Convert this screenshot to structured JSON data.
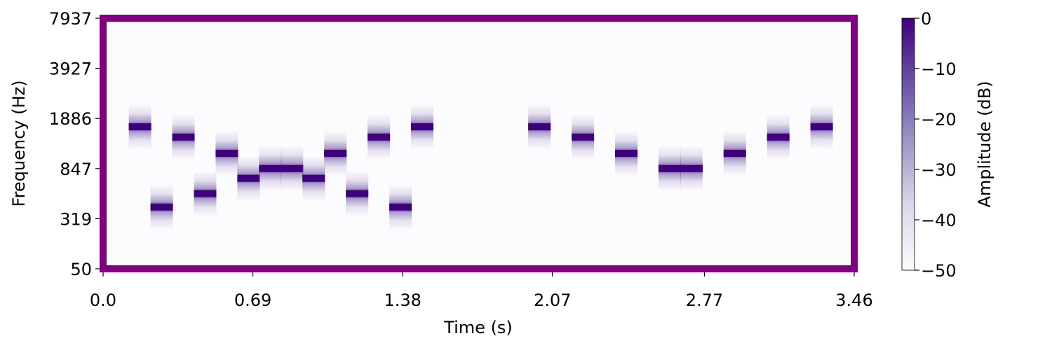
{
  "chart_data": {
    "type": "heatmap",
    "subtype": "spectrogram",
    "xlabel": "Time (s)",
    "ylabel": "Frequency (Hz)",
    "x_ticks": [
      "0.0",
      "0.69",
      "1.38",
      "2.07",
      "2.77",
      "3.46"
    ],
    "x_tick_values": [
      0.0,
      0.69,
      1.38,
      2.07,
      2.77,
      3.46
    ],
    "y_ticks": [
      "50",
      "319",
      "847",
      "1886",
      "3927",
      "7937"
    ],
    "y_tick_values": [
      50,
      319,
      847,
      1886,
      3927,
      7937
    ],
    "xlim": [
      0.0,
      3.46
    ],
    "ylim": [
      50,
      7937
    ],
    "y_scale": "log-like (mel)",
    "colorbar": {
      "label": "Amplitude (dB)",
      "ticks": [
        "0",
        "−10",
        "−20",
        "−30",
        "−40",
        "−50"
      ],
      "tick_values": [
        0,
        -10,
        -20,
        -30,
        -40,
        -50
      ],
      "range": [
        -50,
        0
      ],
      "colormap": "Purples"
    },
    "frame_color": "#800080",
    "background_color": "#fcfbfd",
    "note_color": "#4a1486",
    "notes": [
      {
        "time": 0.17,
        "freq_hz": 1650
      },
      {
        "time": 0.27,
        "freq_hz": 400
      },
      {
        "time": 0.37,
        "freq_hz": 1400
      },
      {
        "time": 0.47,
        "freq_hz": 520
      },
      {
        "time": 0.57,
        "freq_hz": 1080
      },
      {
        "time": 0.67,
        "freq_hz": 700
      },
      {
        "time": 0.77,
        "freq_hz": 847
      },
      {
        "time": 0.87,
        "freq_hz": 847
      },
      {
        "time": 0.97,
        "freq_hz": 700
      },
      {
        "time": 1.07,
        "freq_hz": 1080
      },
      {
        "time": 1.17,
        "freq_hz": 520
      },
      {
        "time": 1.27,
        "freq_hz": 1400
      },
      {
        "time": 1.37,
        "freq_hz": 400
      },
      {
        "time": 1.47,
        "freq_hz": 1650
      },
      {
        "time": 2.01,
        "freq_hz": 1650
      },
      {
        "time": 2.21,
        "freq_hz": 1400
      },
      {
        "time": 2.41,
        "freq_hz": 1080
      },
      {
        "time": 2.61,
        "freq_hz": 847
      },
      {
        "time": 2.71,
        "freq_hz": 847
      },
      {
        "time": 2.91,
        "freq_hz": 1080
      },
      {
        "time": 3.11,
        "freq_hz": 1400
      },
      {
        "time": 3.31,
        "freq_hz": 1650
      }
    ]
  }
}
